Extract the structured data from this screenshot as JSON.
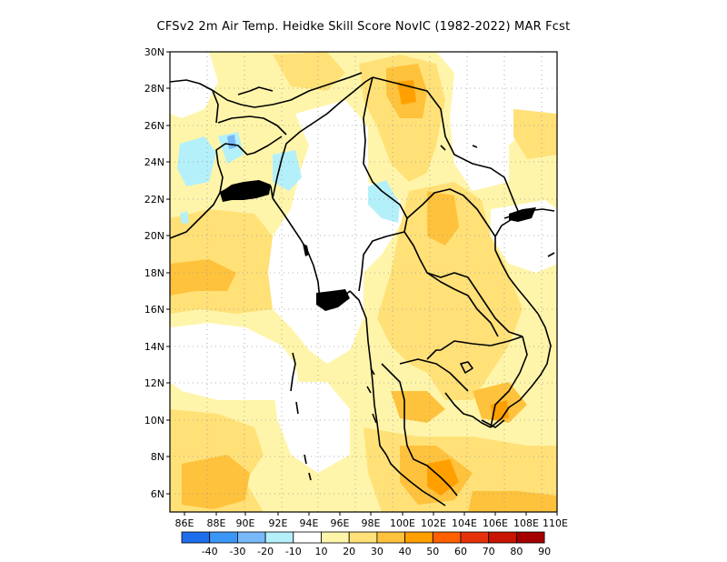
{
  "title": "CFSv2  2m Air Temp. Heidke Skill Score NovIC (1982-2022) MAR Fcst",
  "map": {
    "region": "Mainland Southeast Asia",
    "lon_range": [
      86,
      110
    ],
    "lat_range": [
      5,
      30
    ],
    "grid": "dotted",
    "lat_labels": [
      "30N",
      "28N",
      "26N",
      "24N",
      "22N",
      "20N",
      "18N",
      "16N",
      "14N",
      "12N",
      "10N",
      "8N",
      "6N"
    ],
    "lon_labels": [
      "86E",
      "88E",
      "90E",
      "92E",
      "94E",
      "96E",
      "98E",
      "100E",
      "102E",
      "104E",
      "106E",
      "108E",
      "110E"
    ]
  },
  "colorbar": {
    "labels": [
      "-40",
      "-30",
      "-20",
      "-10",
      "10",
      "20",
      "30",
      "40",
      "50",
      "60",
      "70",
      "80",
      "90"
    ],
    "colors": [
      "#1e6eeb",
      "#3c96f5",
      "#78b9fa",
      "#b4f0fa",
      "#ffffff",
      "#fff5aa",
      "#ffe178",
      "#ffc23c",
      "#ffa000",
      "#ff6000",
      "#e6320a",
      "#c81400",
      "#a50000"
    ]
  }
}
